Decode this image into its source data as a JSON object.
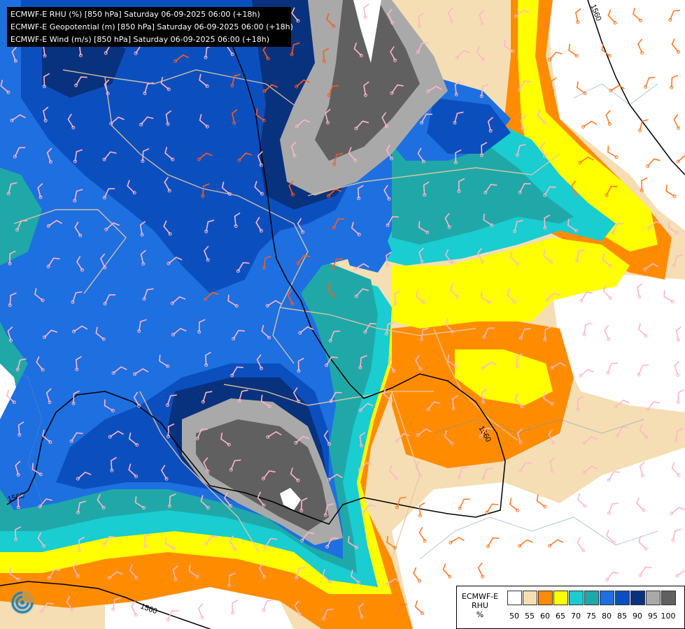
{
  "header": {
    "line1": "ECMWF-E RHU (%) [850 hPa] Saturday 06-09-2025 06:00 (+18h)",
    "line2": "ECMWF-E Geopotential (m) [850 hPa] Saturday 06-09-2025 06:00 (+18h)",
    "line3": "ECMWF-E Wind (m/s) [850 hPa] Saturday 06-09-2025 06:00 (+18h)"
  },
  "contour_labels": [
    "1560",
    "1560",
    "1560",
    "1560"
  ],
  "legend": {
    "label_line1": "ECMWF-E",
    "label_line2": "RHU",
    "label_line3": "%",
    "ticks": [
      "50",
      "55",
      "60",
      "65",
      "70",
      "75",
      "80",
      "85",
      "90",
      "95",
      "100"
    ],
    "colors": [
      "#ffffff",
      "#f5deb3",
      "#ff8c00",
      "#ffff00",
      "#19cdd0",
      "#20a8a8",
      "#1e6fe0",
      "#0b4fbf",
      "#08327d",
      "#a9a9a9",
      "#606060"
    ]
  },
  "colors": {
    "dry": "#ffffff",
    "tan": "#f5deb3",
    "orange": "#ff8c00",
    "yellow": "#ffff00",
    "cyan": "#19cdd0",
    "teal": "#20a8a8",
    "blue": "#1e6fe0",
    "midblue": "#0b4fbf",
    "navy": "#08327d",
    "lightgray": "#a9a9a9",
    "darkgray": "#606060",
    "border": "#e8c8a0"
  }
}
